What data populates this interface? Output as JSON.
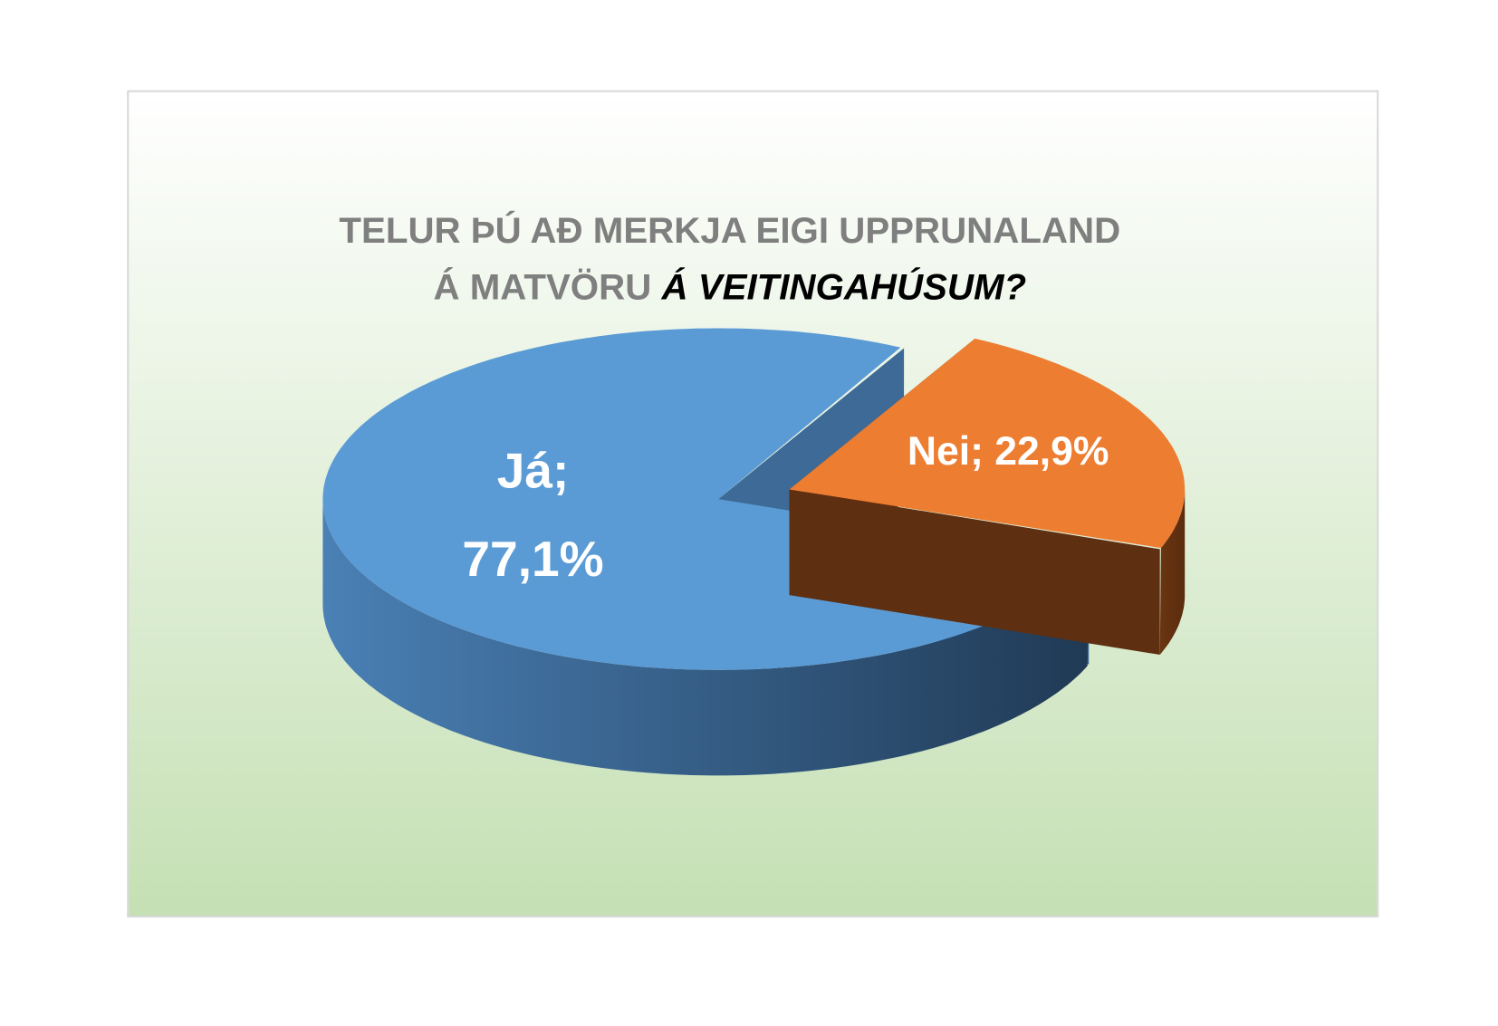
{
  "chart_data": {
    "type": "pie",
    "style": "3d-exploded",
    "title_line1": "TELUR ÞÚ AÐ MERKJA EIGI UPPRUNALAND",
    "title_line2_plain": "Á MATVÖRU ",
    "title_line2_emphasis": "Á VEITINGAHÚSUM?",
    "slices": [
      {
        "category": "Já",
        "value": 77.1,
        "label_line1": "Já;",
        "label_line2": "77,1%",
        "color": "#5b9bd5"
      },
      {
        "category": "Nei",
        "value": 22.9,
        "label": "Nei; 22,9%",
        "color": "#ed7d31"
      }
    ],
    "background_top": "#ffffff",
    "background_bottom": "#c5e0b4",
    "border_color": "#d9d9d9"
  }
}
